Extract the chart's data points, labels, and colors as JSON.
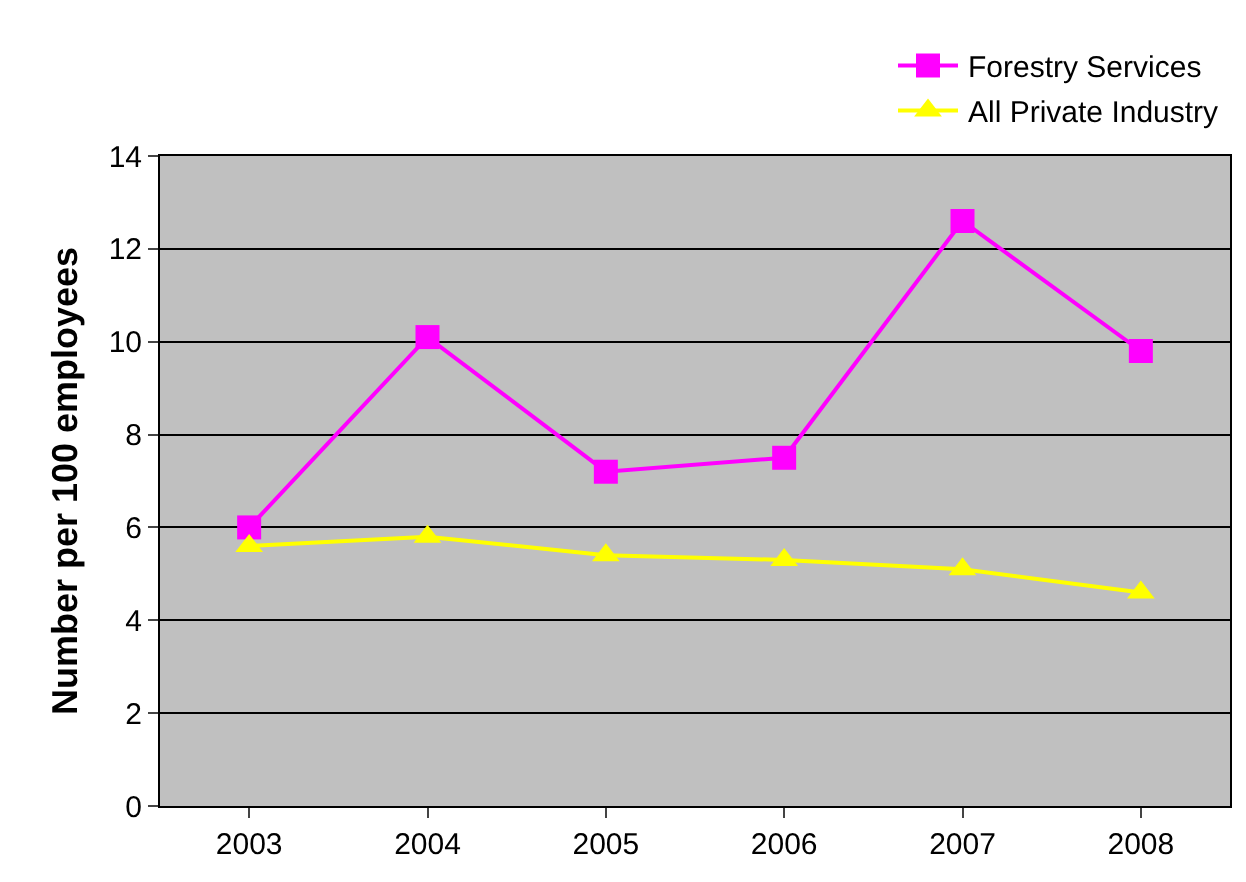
{
  "chart_data": {
    "type": "line",
    "ylabel": "Number per 100 employees",
    "categories": [
      "2003",
      "2004",
      "2005",
      "2006",
      "2007",
      "2008"
    ],
    "series": [
      {
        "name": "Forestry Services",
        "color": "#ff00ff",
        "marker": "square",
        "values": [
          6.0,
          10.1,
          7.2,
          7.5,
          12.6,
          9.8
        ]
      },
      {
        "name": "All Private Industry",
        "color": "#ffff00",
        "marker": "triangle",
        "values": [
          5.6,
          5.8,
          5.4,
          5.3,
          5.1,
          4.6
        ]
      }
    ],
    "ylim": [
      0,
      14
    ],
    "yticks": [
      0,
      2,
      4,
      6,
      8,
      10,
      12,
      14
    ],
    "grid": "y",
    "legend": "top right"
  }
}
